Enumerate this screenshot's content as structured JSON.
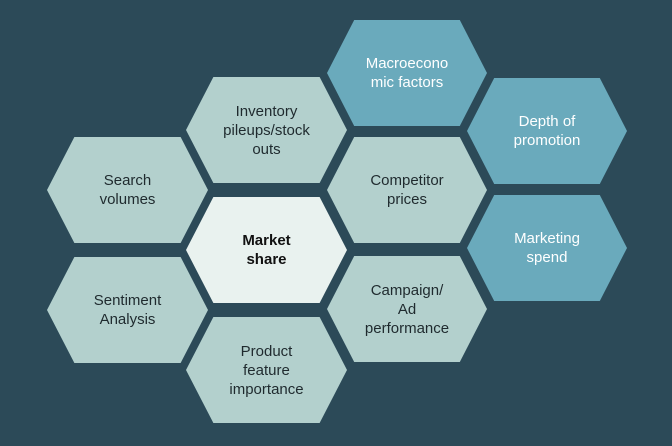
{
  "colors": {
    "background": "#2c4a58",
    "hex_light": "#b3d0cd",
    "hex_teal": "#6aaabc",
    "hex_center": "#e9f2ef"
  },
  "diagram": {
    "center": "Market\nshare",
    "factors": {
      "search_volumes": "Search\nvolumes",
      "inventory": "Inventory\npileups/stock\nouts",
      "sentiment": "Sentiment\nAnalysis",
      "product_feature": "Product\nfeature\nimportance",
      "competitor_prices": "Competitor\nprices",
      "campaign": "Campaign/\nAd\nperformance",
      "macroeconomic": "Macroecono\nmic factors",
      "depth_of_promotion": "Depth of\npromotion",
      "marketing_spend": "Marketing\nspend"
    }
  }
}
